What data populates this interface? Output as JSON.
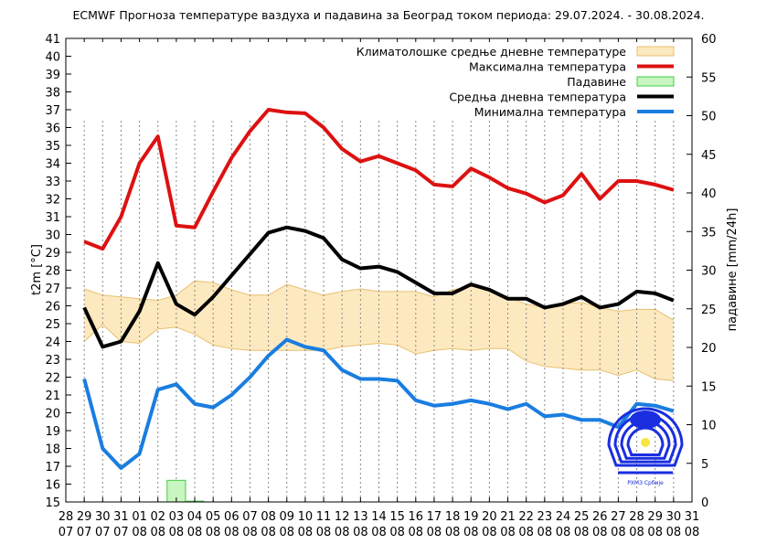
{
  "chart_data": {
    "type": "line",
    "title": "ECMWF Прогноза температуре ваздуха и падавина за Београд током периода: 29.07.2024. - 30.08.2024.",
    "ylabel": "t2m [°C]",
    "y2label": "падавине [mm/24h]",
    "ylim": [
      15,
      41
    ],
    "y2lim": [
      0,
      60
    ],
    "yticks": [
      15,
      16,
      17,
      18,
      19,
      20,
      21,
      22,
      23,
      24,
      25,
      26,
      27,
      28,
      29,
      30,
      31,
      32,
      33,
      34,
      35,
      36,
      37,
      38,
      39,
      40,
      41
    ],
    "y2ticks": [
      0,
      5,
      10,
      15,
      20,
      25,
      30,
      35,
      40,
      45,
      50,
      55,
      60
    ],
    "xtick_labels": [
      [
        "28",
        "07"
      ],
      [
        "29",
        "07"
      ],
      [
        "30",
        "07"
      ],
      [
        "31",
        "07"
      ],
      [
        "01",
        "08"
      ],
      [
        "02",
        "08"
      ],
      [
        "03",
        "08"
      ],
      [
        "04",
        "08"
      ],
      [
        "05",
        "08"
      ],
      [
        "06",
        "08"
      ],
      [
        "07",
        "08"
      ],
      [
        "08",
        "08"
      ],
      [
        "09",
        "08"
      ],
      [
        "10",
        "08"
      ],
      [
        "11",
        "08"
      ],
      [
        "12",
        "08"
      ],
      [
        "13",
        "08"
      ],
      [
        "14",
        "08"
      ],
      [
        "15",
        "08"
      ],
      [
        "16",
        "08"
      ],
      [
        "17",
        "08"
      ],
      [
        "18",
        "08"
      ],
      [
        "19",
        "08"
      ],
      [
        "20",
        "08"
      ],
      [
        "21",
        "08"
      ],
      [
        "22",
        "08"
      ],
      [
        "23",
        "08"
      ],
      [
        "24",
        "08"
      ],
      [
        "25",
        "08"
      ],
      [
        "26",
        "08"
      ],
      [
        "27",
        "08"
      ],
      [
        "28",
        "08"
      ],
      [
        "29",
        "08"
      ],
      [
        "30",
        "08"
      ],
      [
        "31",
        "08"
      ]
    ],
    "x": [
      "29.07",
      "30.07",
      "31.07",
      "01.08",
      "02.08",
      "03.08",
      "04.08",
      "05.08",
      "06.08",
      "07.08",
      "08.08",
      "09.08",
      "10.08",
      "11.08",
      "12.08",
      "13.08",
      "14.08",
      "15.08",
      "16.08",
      "17.08",
      "18.08",
      "19.08",
      "20.08",
      "21.08",
      "22.08",
      "23.08",
      "24.08",
      "25.08",
      "26.08",
      "27.08",
      "28.08",
      "29.08",
      "30.08"
    ],
    "grid": "vertical dotted",
    "legend_placement": "top-right",
    "climatology": {
      "name": "Климатолошке средње дневне температуре",
      "color": "#fde9bf",
      "edge": "#e8c070",
      "upper": [
        26.95,
        26.6,
        26.5,
        26.4,
        26.3,
        26.6,
        27.4,
        27.3,
        26.9,
        26.6,
        26.6,
        27.2,
        26.9,
        26.6,
        26.8,
        26.95,
        26.8,
        26.8,
        26.8,
        26.5,
        26.9,
        27.1,
        26.9,
        26.5,
        26.1,
        25.9,
        26.1,
        26.2,
        25.9,
        25.7,
        25.8,
        25.8,
        25.2
      ],
      "lower": [
        24.0,
        24.95,
        24.0,
        23.9,
        24.7,
        24.8,
        24.4,
        23.8,
        23.6,
        23.5,
        23.5,
        23.5,
        23.5,
        23.5,
        23.7,
        23.8,
        23.9,
        23.8,
        23.3,
        23.5,
        23.6,
        23.5,
        23.6,
        23.6,
        22.9,
        22.6,
        22.5,
        22.4,
        22.4,
        22.1,
        22.4,
        21.9,
        21.8
      ]
    },
    "series": [
      {
        "name": "Максимална температура",
        "color": "#dd1111",
        "values": [
          29.6,
          29.2,
          31.0,
          34.0,
          35.5,
          30.5,
          30.4,
          32.4,
          34.3,
          35.8,
          37.0,
          36.85,
          36.8,
          36.0,
          34.8,
          34.1,
          34.4,
          34.0,
          33.6,
          32.8,
          32.7,
          33.7,
          33.2,
          32.6,
          32.3,
          31.8,
          32.2,
          33.4,
          32.0,
          33.0,
          33.0,
          32.8,
          32.5
        ]
      },
      {
        "name": "Средња дневна температура",
        "color": "#000000",
        "values": [
          25.9,
          23.7,
          24.0,
          25.7,
          28.4,
          26.1,
          25.5,
          26.5,
          27.7,
          28.9,
          30.1,
          30.4,
          30.2,
          29.8,
          28.6,
          28.1,
          28.2,
          27.9,
          27.3,
          26.7,
          26.7,
          27.2,
          26.9,
          26.4,
          26.4,
          25.9,
          26.1,
          26.5,
          25.9,
          26.1,
          26.8,
          26.7,
          26.3
        ]
      },
      {
        "name": "Минимална температура",
        "color": "#1a7de0",
        "values": [
          21.9,
          18.0,
          16.9,
          17.7,
          21.3,
          21.6,
          20.5,
          20.3,
          21.0,
          22.0,
          23.2,
          24.1,
          23.7,
          23.5,
          22.4,
          21.9,
          21.9,
          21.8,
          20.7,
          20.4,
          20.5,
          20.7,
          20.5,
          20.2,
          20.5,
          19.8,
          19.9,
          19.6,
          19.6,
          19.2,
          20.5,
          20.4,
          20.1
        ]
      }
    ],
    "precipitation": {
      "name": "Падавине",
      "color": "#c8f5c0",
      "edge": "#44cc44",
      "values": [
        0,
        0,
        0,
        0,
        0,
        2.8,
        0.1,
        0,
        0,
        0,
        0,
        0,
        0,
        0,
        0,
        0,
        0,
        0,
        0,
        0,
        0,
        0,
        0,
        0,
        0,
        0,
        0,
        0,
        0,
        0,
        0,
        0,
        0
      ]
    },
    "legend_order": [
      "Климатолошке средње дневне температуре",
      "Максимална температура",
      "Падавине",
      "Средња дневна температура",
      "Минимална температура"
    ]
  },
  "logo": {
    "text": "РХМЗ Србије"
  }
}
